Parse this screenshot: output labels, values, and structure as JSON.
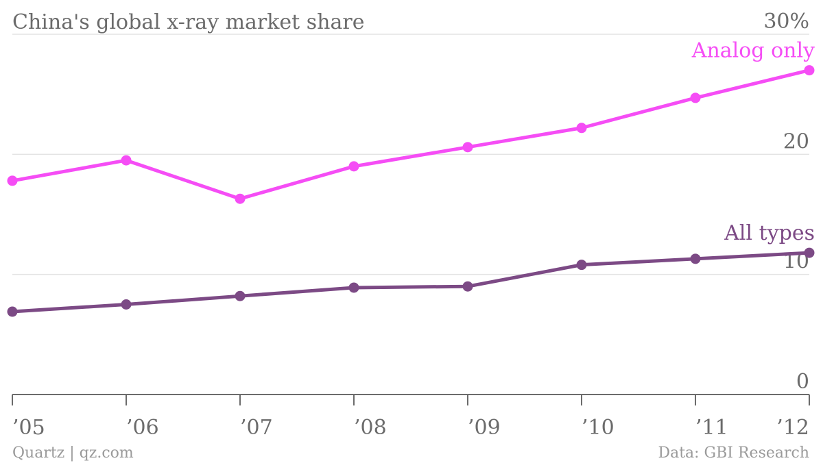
{
  "title": "China's global x-ray market share",
  "footer": {
    "left": "Quartz | qz.com",
    "right": "Data: GBI Research"
  },
  "chart_data": {
    "type": "line",
    "title": "China's global x-ray market share",
    "xlabel": "",
    "ylabel": "",
    "x": [
      "’05",
      "’06",
      "’07",
      "’08",
      "’09",
      "’10",
      "’11",
      "’12"
    ],
    "ylim": [
      0,
      30
    ],
    "yticks": [
      0,
      10,
      20,
      30
    ],
    "ytick_labels": [
      "0",
      "10",
      "20",
      "30%"
    ],
    "grid": true,
    "legend": "inline labels at line ends",
    "series": [
      {
        "name": "Analog only",
        "color": "#f54df5",
        "values": [
          17.8,
          19.5,
          16.3,
          19.0,
          20.6,
          22.2,
          24.7,
          27.0
        ]
      },
      {
        "name": "All types",
        "color": "#7c4a85",
        "values": [
          6.9,
          7.5,
          8.2,
          8.9,
          9.0,
          10.8,
          11.3,
          11.8
        ]
      }
    ]
  }
}
